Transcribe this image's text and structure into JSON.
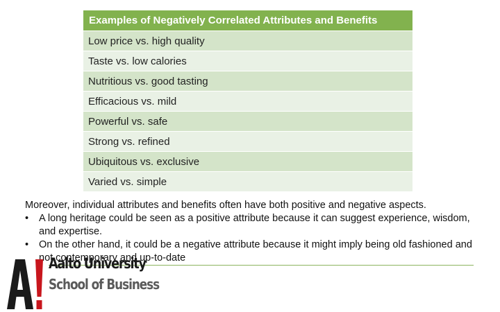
{
  "table": {
    "header": "Examples of Negatively Correlated Attributes and Benefits",
    "rows": [
      "Low price vs. high quality",
      "Taste vs. low calories",
      "Nutritious vs. good tasting",
      "Efficacious vs. mild",
      "Powerful vs. safe",
      "Strong vs. refined",
      "Ubiquitous vs. exclusive",
      "Varied vs. simple"
    ]
  },
  "body": {
    "intro": "Moreover, individual attributes and benefits often have both positive and negative aspects.",
    "bullet_symbol": "•",
    "bullets": [
      "A long heritage could be seen as a positive attribute because it can suggest experience, wisdom, and expertise.",
      "On the other hand, it could be a negative attribute because it might imply being old fashioned and not contemporary and up-to-date"
    ]
  },
  "logo": {
    "mark_text": "A!",
    "name": "Aalto University",
    "school": "School of Business",
    "colors": {
      "mark": "#c8161d",
      "line": "#8bb35e",
      "table_header": "#82b24e"
    }
  }
}
